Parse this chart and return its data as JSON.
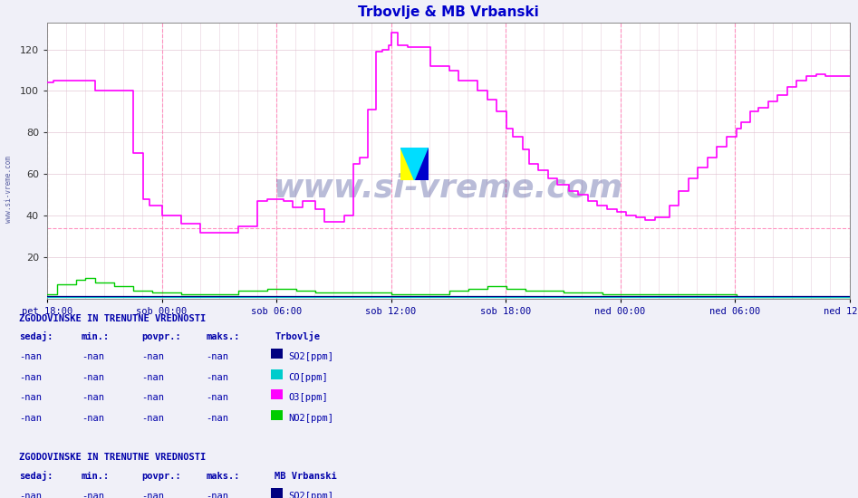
{
  "title": "Trbovlje & MB Vrbanski",
  "title_color": "#0000cc",
  "bg_color": "#f0f0f8",
  "plot_bg_color": "#ffffff",
  "ylim": [
    0,
    133
  ],
  "yticks": [
    20,
    40,
    60,
    80,
    100,
    120
  ],
  "x_tick_labels": [
    "pet 18:00",
    "sob 00:00",
    "sob 06:00",
    "sob 12:00",
    "sob 18:00",
    "ned 00:00",
    "ned 06:00",
    "ned 12:00"
  ],
  "x_tick_pos": [
    0,
    6,
    12,
    18,
    24,
    30,
    36,
    42
  ],
  "time_total_hours": 42,
  "grid_color": "#ddaacc",
  "hline_y": 34,
  "hline_color": "#ff88bb",
  "vline_color": "#ff88bb",
  "minor_vline_color": "#ddbbcc",
  "colors": {
    "SO2": "#000080",
    "CO": "#00cccc",
    "O3": "#ff00ff",
    "NO2": "#00cc00"
  },
  "watermark": "www.si-vreme.com",
  "watermark_color": "#1a237e",
  "watermark_alpha": 0.3,
  "sidebar_text": "www.si-vreme.com",
  "sidebar_color": "#1a237e"
}
